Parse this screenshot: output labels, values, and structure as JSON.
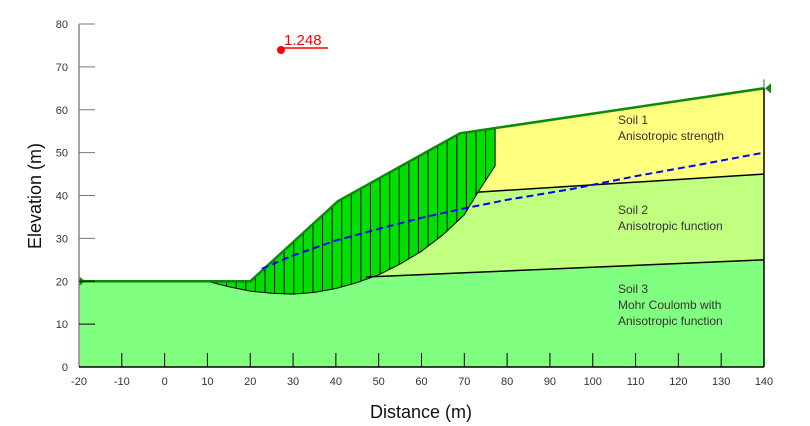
{
  "chart_data": {
    "type": "diagram",
    "title": "",
    "xlabel": "Distance (m)",
    "ylabel": "Elevation (m)",
    "xlim": [
      -20,
      140
    ],
    "ylim": [
      0,
      80
    ],
    "x_ticks": [
      -20,
      -10,
      0,
      10,
      20,
      30,
      40,
      50,
      60,
      70,
      80,
      90,
      100,
      110,
      120,
      130,
      140
    ],
    "y_ticks": [
      0,
      10,
      20,
      30,
      40,
      50,
      60,
      70,
      80
    ],
    "ground_surface": [
      [
        -20,
        20
      ],
      [
        20,
        20
      ],
      [
        40.5,
        38.7
      ],
      [
        69,
        54.5
      ],
      [
        140,
        65
      ]
    ],
    "soil_boundary_1_2": [
      [
        73.2,
        40.8
      ],
      [
        140,
        45
      ]
    ],
    "soil_boundary_2_3": [
      [
        47,
        21
      ],
      [
        140,
        25
      ]
    ],
    "water_table": [
      [
        22.7,
        22.9
      ],
      [
        30,
        26
      ],
      [
        40,
        29.5
      ],
      [
        50,
        32.2
      ],
      [
        60,
        34.8
      ],
      [
        70,
        37
      ],
      [
        80,
        39
      ],
      [
        95,
        41.5
      ],
      [
        110,
        44.5
      ],
      [
        125,
        47.2
      ],
      [
        140,
        50
      ]
    ],
    "slip_surface": [
      [
        10,
        20
      ],
      [
        15,
        18.7
      ],
      [
        20,
        17.7
      ],
      [
        25,
        17.2
      ],
      [
        30,
        17
      ],
      [
        35,
        17.4
      ],
      [
        40,
        18.3
      ],
      [
        45,
        19.7
      ],
      [
        50,
        21.5
      ],
      [
        55,
        24
      ],
      [
        60,
        27
      ],
      [
        65,
        30.8
      ],
      [
        70,
        35.5
      ],
      [
        73.2,
        40.8
      ],
      [
        77.2,
        46.9
      ],
      [
        77.2,
        55.7
      ]
    ],
    "factor_of_safety": {
      "value": "1.248",
      "center": [
        27,
        74
      ]
    },
    "soils": [
      {
        "name": "Soil 1",
        "model": "Anisotropic strength",
        "color": "#ffff80"
      },
      {
        "name": "Soil 2",
        "model": "Anisotropic function",
        "color": "#c0ff80"
      },
      {
        "name": "Soil 3",
        "model": "Mohr Coulomb with Anisotropic function",
        "color": "#80ff80"
      }
    ],
    "slip_mass_color": "#00e000",
    "water_table_color": "#0000ff"
  },
  "labels": {
    "xlabel": "Distance (m)",
    "ylabel": "Elevation (m)",
    "fos": "1.248",
    "soil1_name": "Soil 1",
    "soil1_desc": "Anisotropic strength",
    "soil2_name": "Soil 2",
    "soil2_desc": "Anisotropic function",
    "soil3_name": "Soil 3",
    "soil3_desc_line1": "Mohr Coulomb with",
    "soil3_desc_line2": "Anisotropic function"
  }
}
